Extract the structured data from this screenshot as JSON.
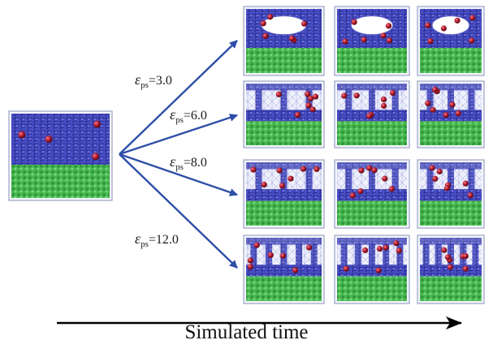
{
  "figure": {
    "time_axis_label": "Simulated time",
    "initial_state": {
      "name": "initial-box"
    },
    "conditions": [
      {
        "symbol": "ε",
        "subscript": "ps",
        "value_text": "=3.0",
        "regime": "cavity"
      },
      {
        "symbol": "ε",
        "subscript": "ps",
        "value_text": "=6.0",
        "regime": "bridges"
      },
      {
        "symbol": "ε",
        "subscript": "ps",
        "value_text": "=8.0",
        "regime": "bridges"
      },
      {
        "symbol": "ε",
        "subscript": "ps",
        "value_text": "=12.0",
        "regime": "dense-bridges"
      }
    ],
    "snapshots_per_condition": 3,
    "colors": {
      "polymer": "#3b3fb0",
      "substrate": "#3fb04a",
      "particle": "#b0182a",
      "arrow": "#2e4fa8",
      "box_outline": "#9aa3c4"
    }
  }
}
